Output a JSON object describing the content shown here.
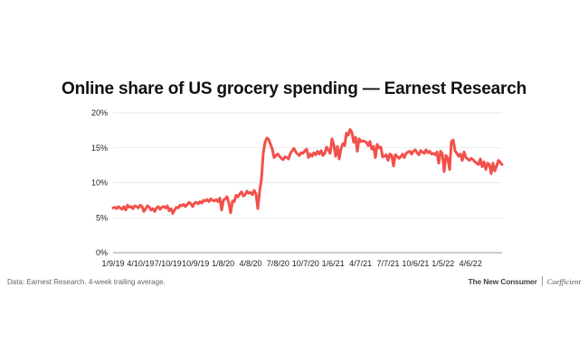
{
  "chart_data": {
    "type": "line",
    "title": "Online share of US grocery spending — Earnest Research",
    "xlabel": "",
    "ylabel": "",
    "ylim": [
      0,
      20
    ],
    "ytick_labels": [
      "0%",
      "5%",
      "10%",
      "15%",
      "20%"
    ],
    "ytick_values": [
      0,
      5,
      10,
      15,
      20
    ],
    "xtick_labels": [
      "1/9/19",
      "4/10/19",
      "7/10/19",
      "10/9/19",
      "1/8/20",
      "4/8/20",
      "7/8/20",
      "10/7/20",
      "1/6/21",
      "4/7/21",
      "7/7/21",
      "10/6/21",
      "1/5/22",
      "4/6/22"
    ],
    "grid": true,
    "line_color": "#f2504b",
    "series": [
      {
        "name": "",
        "y_unit": "%",
        "values": [
          6.4,
          6.5,
          6.3,
          6.6,
          6.4,
          6.2,
          6.6,
          6.1,
          6.8,
          6.5,
          6.6,
          6.3,
          6.7,
          6.6,
          6.4,
          6.8,
          6.6,
          5.9,
          6.3,
          6.7,
          6.5,
          6.1,
          6.3,
          5.9,
          6.4,
          6.6,
          6.2,
          6.5,
          6.6,
          6.4,
          6.7,
          6.0,
          6.3,
          5.6,
          6.1,
          6.5,
          6.4,
          6.8,
          6.7,
          6.9,
          6.6,
          6.9,
          7.2,
          7.0,
          6.6,
          7.1,
          7.2,
          7.0,
          7.3,
          7.1,
          7.5,
          7.4,
          7.6,
          7.3,
          7.7,
          7.5,
          7.4,
          7.6,
          7.3,
          7.8,
          6.1,
          7.5,
          7.7,
          8.0,
          7.1,
          5.7,
          7.4,
          7.3,
          8.2,
          8.0,
          8.4,
          8.7,
          8.1,
          8.3,
          8.8,
          8.5,
          8.6,
          8.3,
          8.9,
          8.4,
          6.3,
          8.8,
          10.5,
          14.2,
          15.8,
          16.4,
          16.2,
          15.5,
          14.8,
          13.6,
          13.9,
          14.1,
          13.8,
          13.5,
          13.3,
          13.7,
          13.6,
          13.4,
          14.2,
          14.6,
          14.9,
          14.4,
          14.1,
          13.9,
          14.3,
          14.2,
          14.6,
          14.8,
          13.6,
          14.1,
          13.8,
          14.3,
          14.0,
          14.5,
          14.1,
          14.6,
          13.9,
          14.2,
          15.1,
          14.7,
          14.2,
          16.3,
          15.4,
          13.8,
          15.2,
          13.4,
          14.9,
          15.6,
          15.3,
          17.1,
          16.8,
          17.6,
          17.2,
          15.8,
          16.5,
          14.5,
          16.3,
          15.9,
          16.0,
          15.9,
          15.8,
          15.3,
          15.9,
          14.8,
          15.2,
          13.6,
          15.5,
          15.0,
          15.1,
          13.7,
          13.8,
          14.0,
          13.2,
          14.1,
          13.9,
          12.4,
          14.0,
          13.8,
          13.5,
          13.7,
          14.1,
          13.6,
          14.2,
          14.4,
          14.5,
          14.1,
          14.5,
          14.7,
          14.3,
          14.0,
          14.6,
          14.4,
          14.2,
          14.7,
          14.3,
          14.5,
          14.1,
          14.2,
          14.0,
          14.4,
          12.8,
          14.5,
          14.1,
          11.6,
          13.9,
          13.5,
          11.9,
          15.9,
          16.1,
          14.6,
          14.2,
          13.8,
          14.1,
          13.2,
          14.4,
          13.6,
          13.4,
          13.2,
          13.5,
          13.3,
          13.0,
          12.8,
          12.6,
          13.4,
          12.3,
          13.0,
          11.9,
          12.8,
          12.6,
          11.3,
          12.8,
          11.7,
          12.4,
          13.2,
          12.9,
          12.6
        ]
      }
    ]
  },
  "footer": {
    "source_note": "Data: Earnest Research. 4-week trailing average.",
    "brand_primary": "The New Consumer",
    "brand_secondary": "Coefficient"
  }
}
